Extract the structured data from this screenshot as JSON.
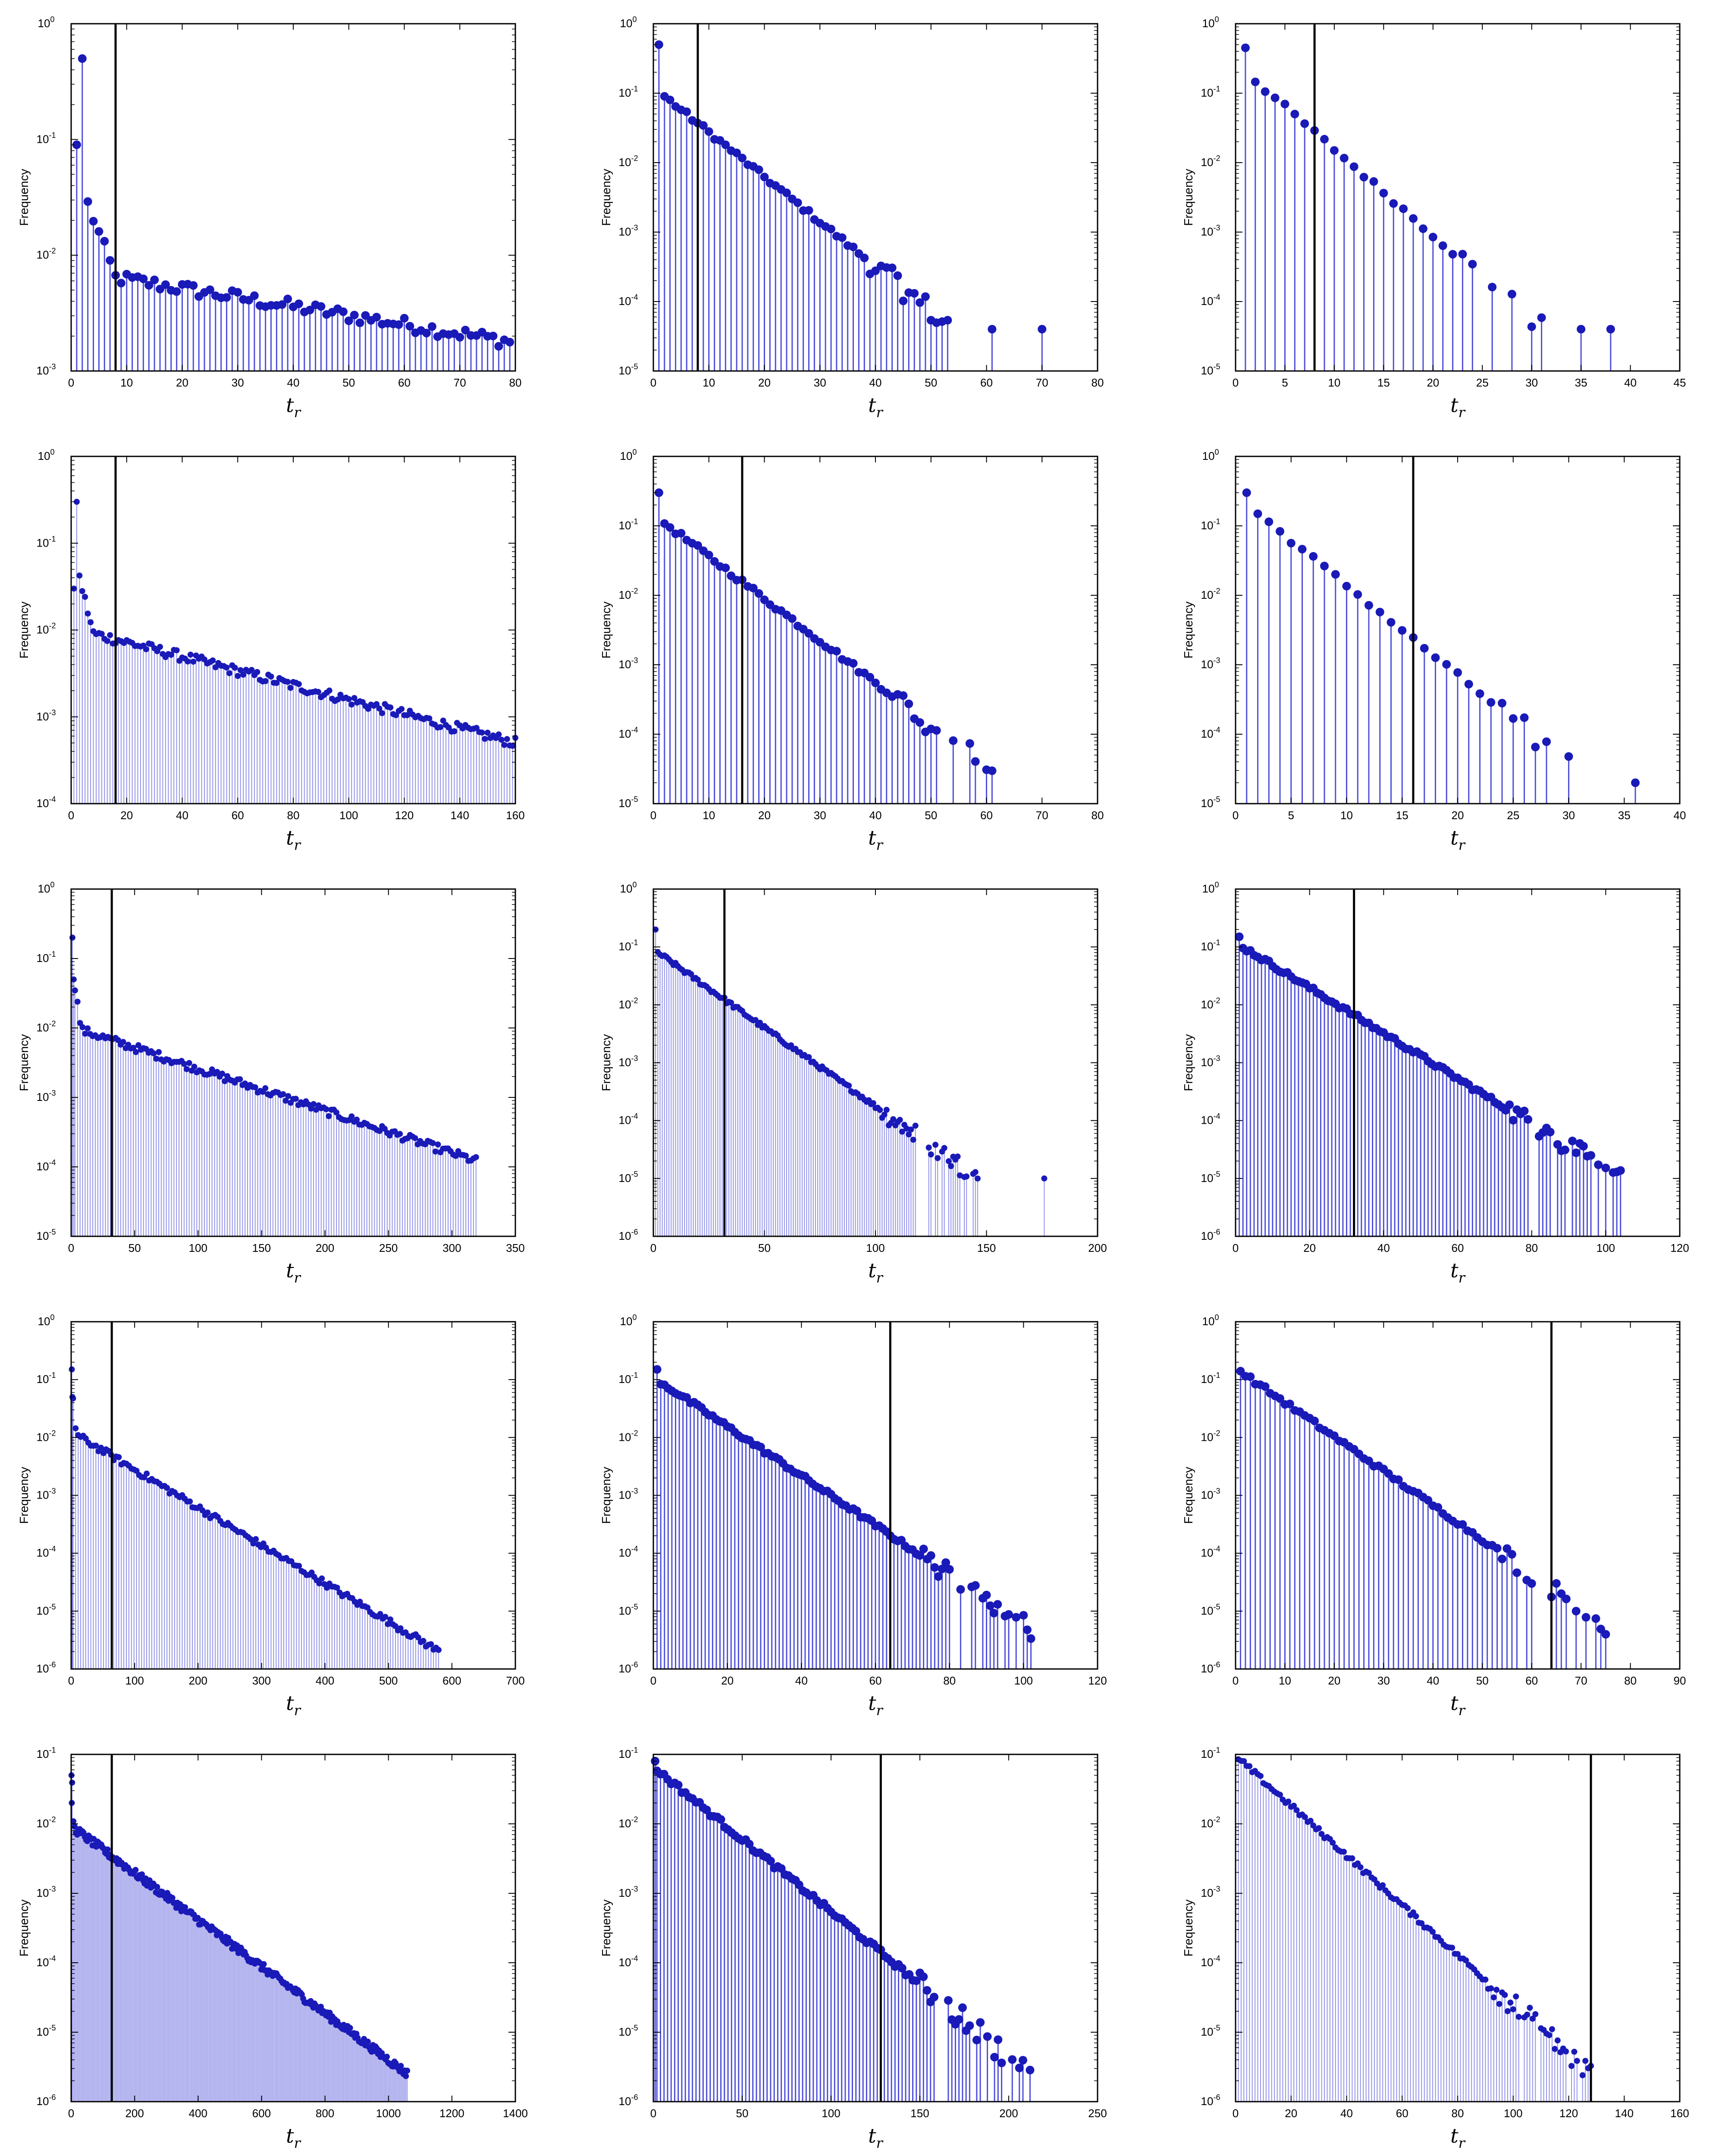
{
  "figure": {
    "ylabel": "Frequency",
    "xlabel_main": "t",
    "xlabel_sub": "r",
    "stem_color": "#3b3bd6",
    "marker_color": "#1a1ab8",
    "vline_color": "#000000"
  },
  "chart_data": [
    {
      "type": "stem",
      "yscale": "log",
      "ylim_exp": [
        -3,
        0
      ],
      "ylim": [
        0.001,
        1
      ],
      "xlim": [
        0,
        80
      ],
      "xticks": [
        0,
        10,
        20,
        30,
        40,
        50,
        60,
        70,
        80
      ],
      "ylabel": "Frequency",
      "xlabel": "t_r",
      "vline": 8,
      "xmax": 79,
      "decay": "flat",
      "y_first": 0.09,
      "y_second": 0.5,
      "y_tail_start": 0.007,
      "y_tail_end": 0.0018,
      "notes": "stems at integer t_r"
    },
    {
      "type": "stem",
      "yscale": "log",
      "ylim_exp": [
        -5,
        0
      ],
      "ylim": [
        1e-05,
        1
      ],
      "xlim": [
        0,
        80
      ],
      "xticks": [
        0,
        10,
        20,
        30,
        40,
        50,
        60,
        70,
        80
      ],
      "ylabel": "Frequency",
      "xlabel": "t_r",
      "vline": 8,
      "xmax": 54,
      "decay": "exp",
      "y_first": 0.5,
      "y_start": 0.09,
      "y_end": 4e-05,
      "isolated_points": [
        [
          61,
          4e-05
        ],
        [
          70,
          4e-05
        ]
      ]
    },
    {
      "type": "stem",
      "yscale": "log",
      "ylim_exp": [
        -5,
        0
      ],
      "ylim": [
        1e-05,
        1
      ],
      "xlim": [
        0,
        45
      ],
      "xticks": [
        0,
        5,
        10,
        15,
        20,
        25,
        30,
        35,
        40,
        45
      ],
      "ylabel": "Frequency",
      "xlabel": "t_r",
      "vline": 8,
      "xmax": 31,
      "decay": "exp",
      "y_first": 0.45,
      "y_start": 0.15,
      "y_end": 4e-05,
      "isolated_points": [
        [
          35,
          4e-05
        ],
        [
          38,
          4e-05
        ]
      ]
    },
    {
      "type": "stem",
      "yscale": "log",
      "ylim_exp": [
        -4,
        0
      ],
      "ylim": [
        0.0001,
        1
      ],
      "xlim": [
        0,
        160
      ],
      "xticks": [
        0,
        20,
        40,
        60,
        80,
        100,
        120,
        140,
        160
      ],
      "ylabel": "Frequency",
      "xlabel": "t_r",
      "vline": 16,
      "xmax": 160,
      "decay": "flat",
      "y_first": 0.03,
      "y_second": 0.3,
      "y_tail_start": 0.01,
      "y_tail_end": 0.0005
    },
    {
      "type": "stem",
      "yscale": "log",
      "ylim_exp": [
        -5,
        0
      ],
      "ylim": [
        1e-05,
        1
      ],
      "xlim": [
        0,
        80
      ],
      "xticks": [
        0,
        10,
        20,
        30,
        40,
        50,
        60,
        70,
        80
      ],
      "ylabel": "Frequency",
      "xlabel": "t_r",
      "vline": 16,
      "xmax": 61,
      "decay": "exp",
      "y_first": 0.3,
      "y_start": 0.11,
      "y_end": 3e-05,
      "isolated_points": []
    },
    {
      "type": "stem",
      "yscale": "log",
      "ylim_exp": [
        -5,
        0
      ],
      "ylim": [
        1e-05,
        1
      ],
      "xlim": [
        0,
        40
      ],
      "xticks": [
        0,
        5,
        10,
        15,
        20,
        25,
        30,
        35,
        40
      ],
      "ylabel": "Frequency",
      "xlabel": "t_r",
      "vline": 16,
      "xmax": 32,
      "decay": "exp",
      "y_first": 0.3,
      "y_start": 0.15,
      "y_end": 2e-05,
      "isolated_points": [
        [
          36,
          2e-05
        ]
      ]
    },
    {
      "type": "stem",
      "yscale": "log",
      "ylim_exp": [
        -5,
        0
      ],
      "ylim": [
        1e-05,
        1
      ],
      "xlim": [
        0,
        350
      ],
      "xticks": [
        0,
        50,
        100,
        150,
        200,
        250,
        300,
        350
      ],
      "ylabel": "Frequency",
      "xlabel": "t_r",
      "vline": 32,
      "xmax": 320,
      "decay": "flat",
      "y_first": 0.2,
      "y_second": 0.05,
      "y_tail_start": 0.01,
      "y_tail_end": 0.00012
    },
    {
      "type": "stem",
      "yscale": "log",
      "ylim_exp": [
        -6,
        0
      ],
      "ylim": [
        1e-06,
        1
      ],
      "xlim": [
        0,
        200
      ],
      "xticks": [
        0,
        50,
        100,
        150,
        200
      ],
      "ylabel": "Frequency",
      "xlabel": "t_r",
      "vline": 32,
      "xmax": 146,
      "decay": "exp",
      "y_first": 0.2,
      "y_start": 0.08,
      "y_end": 1e-05,
      "isolated_points": [
        [
          176,
          1e-05
        ]
      ]
    },
    {
      "type": "stem",
      "yscale": "log",
      "ylim_exp": [
        -6,
        0
      ],
      "ylim": [
        1e-06,
        1
      ],
      "xlim": [
        0,
        120
      ],
      "xticks": [
        0,
        20,
        40,
        60,
        80,
        100,
        120
      ],
      "ylabel": "Frequency",
      "xlabel": "t_r",
      "vline": 32,
      "xmax": 104,
      "decay": "exp",
      "y_first": 0.15,
      "y_start": 0.1,
      "y_end": 1e-05,
      "isolated_points": []
    },
    {
      "type": "stem",
      "yscale": "log",
      "ylim_exp": [
        -6,
        0
      ],
      "ylim": [
        1e-06,
        1
      ],
      "xlim": [
        0,
        700
      ],
      "xticks": [
        0,
        100,
        200,
        300,
        400,
        500,
        600,
        700
      ],
      "ylabel": "Frequency",
      "xlabel": "t_r",
      "vline": 64,
      "xmax": 580,
      "decay": "flat",
      "y_first": 0.15,
      "y_second": 0.05,
      "y_tail_start": 0.012,
      "y_tail_end": 2e-06
    },
    {
      "type": "stem",
      "yscale": "log",
      "ylim_exp": [
        -6,
        0
      ],
      "ylim": [
        1e-06,
        1
      ],
      "xlim": [
        0,
        120
      ],
      "xticks": [
        0,
        20,
        40,
        60,
        80,
        100,
        120
      ],
      "ylabel": "Frequency",
      "xlabel": "t_r",
      "vline": 64,
      "xmax": 102,
      "decay": "exp",
      "y_first": 0.15,
      "y_start": 0.09,
      "y_end": 5e-06,
      "isolated_points": []
    },
    {
      "type": "stem",
      "yscale": "log",
      "ylim_exp": [
        -6,
        0
      ],
      "ylim": [
        1e-06,
        1
      ],
      "xlim": [
        0,
        90
      ],
      "xticks": [
        0,
        10,
        20,
        30,
        40,
        50,
        60,
        70,
        80,
        90
      ],
      "ylabel": "Frequency",
      "xlabel": "t_r",
      "vline": 64,
      "xmax": 76,
      "decay": "exp",
      "y_first": 0.14,
      "y_start": 0.12,
      "y_end": 5e-06,
      "isolated_points": []
    },
    {
      "type": "stem",
      "yscale": "log",
      "ylim_exp": [
        -6,
        -1
      ],
      "ylim": [
        1e-06,
        0.1
      ],
      "xlim": [
        0,
        1400
      ],
      "xticks": [
        0,
        200,
        400,
        600,
        800,
        1000,
        1200,
        1400
      ],
      "ylabel": "Frequency",
      "xlabel": "t_r",
      "vline": 128,
      "xmax": 1060,
      "decay": "flat",
      "y_first": 0.05,
      "y_second": 0.02,
      "y_tail_start": 0.009,
      "y_tail_end": 2.5e-06
    },
    {
      "type": "stem",
      "yscale": "log",
      "ylim_exp": [
        -6,
        -1
      ],
      "ylim": [
        1e-06,
        0.1
      ],
      "xlim": [
        0,
        250
      ],
      "xticks": [
        0,
        50,
        100,
        150,
        200,
        250
      ],
      "ylabel": "Frequency",
      "xlabel": "t_r",
      "vline": 128,
      "xmax": 212,
      "decay": "exp",
      "y_first": 0.08,
      "y_start": 0.06,
      "y_end": 2.5e-06,
      "isolated_points": []
    },
    {
      "type": "stem",
      "yscale": "log",
      "ylim_exp": [
        -6,
        -1
      ],
      "ylim": [
        1e-06,
        0.1
      ],
      "xlim": [
        0,
        160
      ],
      "xticks": [
        0,
        20,
        40,
        60,
        80,
        100,
        120,
        140,
        160
      ],
      "ylabel": "Frequency",
      "xlabel": "t_r",
      "vline": 128,
      "xmax": 128,
      "decay": "exp",
      "y_first": 0.085,
      "y_start": 0.08,
      "y_end": 2.5e-06,
      "isolated_points": []
    }
  ]
}
